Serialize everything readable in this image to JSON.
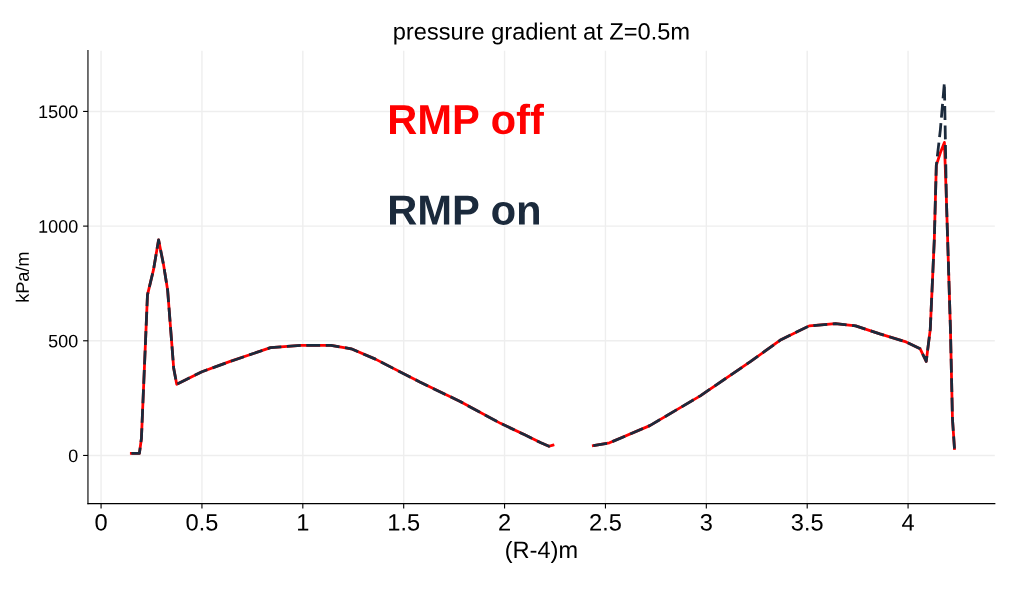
{
  "chart_data": {
    "type": "line",
    "title": "pressure gradient at Z=0.5m",
    "xlabel": "(R-4)m",
    "ylabel": "kPa/m",
    "x": [
      0.15,
      0.19,
      0.2,
      0.23,
      0.26,
      0.285,
      0.31,
      0.33,
      0.36,
      0.375,
      0.42,
      0.5,
      0.64,
      0.84,
      0.99,
      1.14,
      1.24,
      1.36,
      1.58,
      1.78,
      1.98,
      2.1,
      2.18,
      2.22,
      2.24,
      null,
      2.44,
      2.52,
      2.72,
      2.97,
      3.22,
      3.37,
      3.51,
      3.64,
      3.74,
      3.86,
      3.99,
      4.06,
      4.09,
      4.11,
      4.13,
      4.14,
      4.16,
      4.18,
      4.19,
      4.21,
      4.22,
      4.23
    ],
    "series": [
      {
        "name": "RMP off",
        "color": "#ff0000",
        "line_style": "solid",
        "values": [
          9,
          9,
          74,
          700,
          810,
          940,
          830,
          720,
          380,
          310,
          330,
          365,
          410,
          470,
          480,
          480,
          465,
          420,
          320,
          235,
          140,
          90,
          55,
          40,
          45,
          null,
          43,
          55,
          130,
          260,
          410,
          505,
          565,
          575,
          565,
          530,
          495,
          465,
          410,
          550,
          940,
          1265,
          1320,
          1365,
          1115,
          550,
          160,
          30
        ]
      },
      {
        "name": "RMP on",
        "color": "#1b2a3c",
        "line_style": "dashed",
        "values": [
          9,
          9,
          74,
          700,
          810,
          940,
          830,
          720,
          380,
          310,
          330,
          365,
          410,
          470,
          480,
          480,
          465,
          420,
          320,
          235,
          140,
          90,
          55,
          40,
          45,
          null,
          43,
          55,
          130,
          260,
          410,
          505,
          565,
          575,
          565,
          530,
          495,
          465,
          410,
          550,
          940,
          1265,
          1420,
          1625,
          1115,
          550,
          160,
          30
        ]
      }
    ],
    "xlim": [
      -0.065,
      4.43
    ],
    "ylim": [
      -210,
      1765
    ],
    "xticks": [
      0,
      0.5,
      1,
      1.5,
      2,
      2.5,
      3,
      3.5,
      4
    ],
    "yticks": [
      0,
      500,
      1000,
      1500
    ],
    "grid": true,
    "legend": false
  }
}
